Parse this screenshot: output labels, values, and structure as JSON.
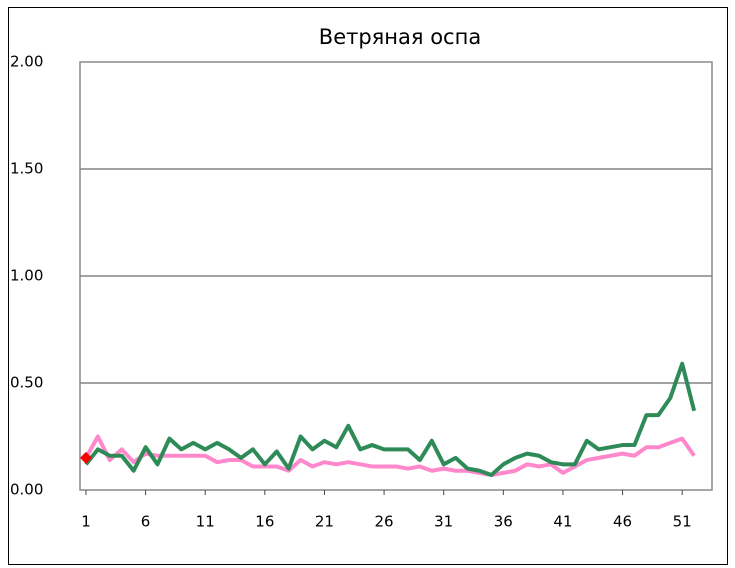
{
  "chart_data": {
    "type": "line",
    "title": "Ветряная оспа",
    "categories": [
      "1",
      null,
      null,
      null,
      null,
      "6",
      null,
      null,
      null,
      null,
      "11",
      null,
      null,
      null,
      null,
      "16",
      null,
      null,
      null,
      null,
      "21",
      null,
      null,
      null,
      null,
      "26",
      null,
      null,
      null,
      null,
      "31",
      null,
      null,
      null,
      null,
      "36",
      null,
      null,
      null,
      null,
      "41",
      null,
      null,
      null,
      null,
      "46",
      null,
      null,
      null,
      null,
      "51",
      null,
      null
    ],
    "series": [
      {
        "color": "#ff88cc",
        "values": [
          0.15,
          0.25,
          0.14,
          0.19,
          0.13,
          0.17,
          0.16,
          0.16,
          0.16,
          0.16,
          0.16,
          0.13,
          0.14,
          0.14,
          0.11,
          0.11,
          0.11,
          0.09,
          0.14,
          0.11,
          0.13,
          0.12,
          0.13,
          0.12,
          0.11,
          0.11,
          0.11,
          0.1,
          0.11,
          0.09,
          0.1,
          0.09,
          0.09,
          0.08,
          0.07,
          0.08,
          0.09,
          0.12,
          0.11,
          0.12,
          0.08,
          0.11,
          0.14,
          0.15,
          0.16,
          0.17,
          0.16,
          0.2,
          0.2,
          0.22,
          0.24,
          0.16,
          null
        ]
      },
      {
        "color": "#2e8b57",
        "values": [
          0.12,
          0.19,
          0.16,
          0.16,
          0.09,
          0.2,
          0.12,
          0.24,
          0.19,
          0.22,
          0.19,
          0.22,
          0.19,
          0.15,
          0.19,
          0.12,
          0.18,
          0.1,
          0.25,
          0.19,
          0.23,
          0.2,
          0.3,
          0.19,
          0.21,
          0.19,
          0.19,
          0.19,
          0.14,
          0.23,
          0.12,
          0.15,
          0.1,
          0.09,
          0.07,
          0.12,
          0.15,
          0.17,
          0.16,
          0.13,
          0.12,
          0.12,
          0.23,
          0.19,
          0.2,
          0.21,
          0.21,
          0.35,
          0.35,
          0.43,
          0.59,
          0.37,
          null
        ]
      },
      {
        "color": "#ff0000",
        "marker": "diamond",
        "values": [
          0.15,
          null,
          null,
          null,
          null,
          null,
          null,
          null,
          null,
          null,
          null,
          null,
          null,
          null,
          null,
          null,
          null,
          null,
          null,
          null,
          null,
          null,
          null,
          null,
          null,
          null,
          null,
          null,
          null,
          null,
          null,
          null,
          null,
          null,
          null,
          null,
          null,
          null,
          null,
          null,
          null,
          null,
          null,
          null,
          null,
          null,
          null,
          null,
          null,
          null,
          null,
          null,
          null
        ]
      }
    ],
    "ylim": [
      0,
      2
    ],
    "yticks": [
      {
        "value": 0,
        "label": "0.00"
      },
      {
        "value": 0.5,
        "label": "0.50"
      },
      {
        "value": 1,
        "label": "1.00"
      },
      {
        "value": 1.5,
        "label": "1.50"
      },
      {
        "value": 2,
        "label": "2.00"
      }
    ],
    "grid": true
  }
}
